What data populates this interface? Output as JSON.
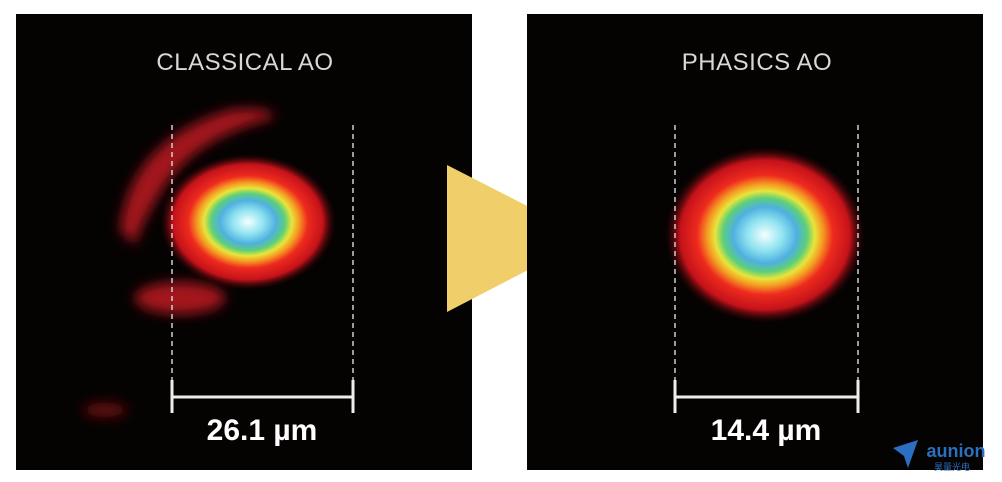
{
  "panels": [
    {
      "title": "CLASSICAL AO",
      "measurement": "26.1 µm"
    },
    {
      "title": "PHASICS AO",
      "measurement": "14.4 µm"
    }
  ],
  "logo": {
    "name": "aunion",
    "subtitle": "昊量光电"
  }
}
